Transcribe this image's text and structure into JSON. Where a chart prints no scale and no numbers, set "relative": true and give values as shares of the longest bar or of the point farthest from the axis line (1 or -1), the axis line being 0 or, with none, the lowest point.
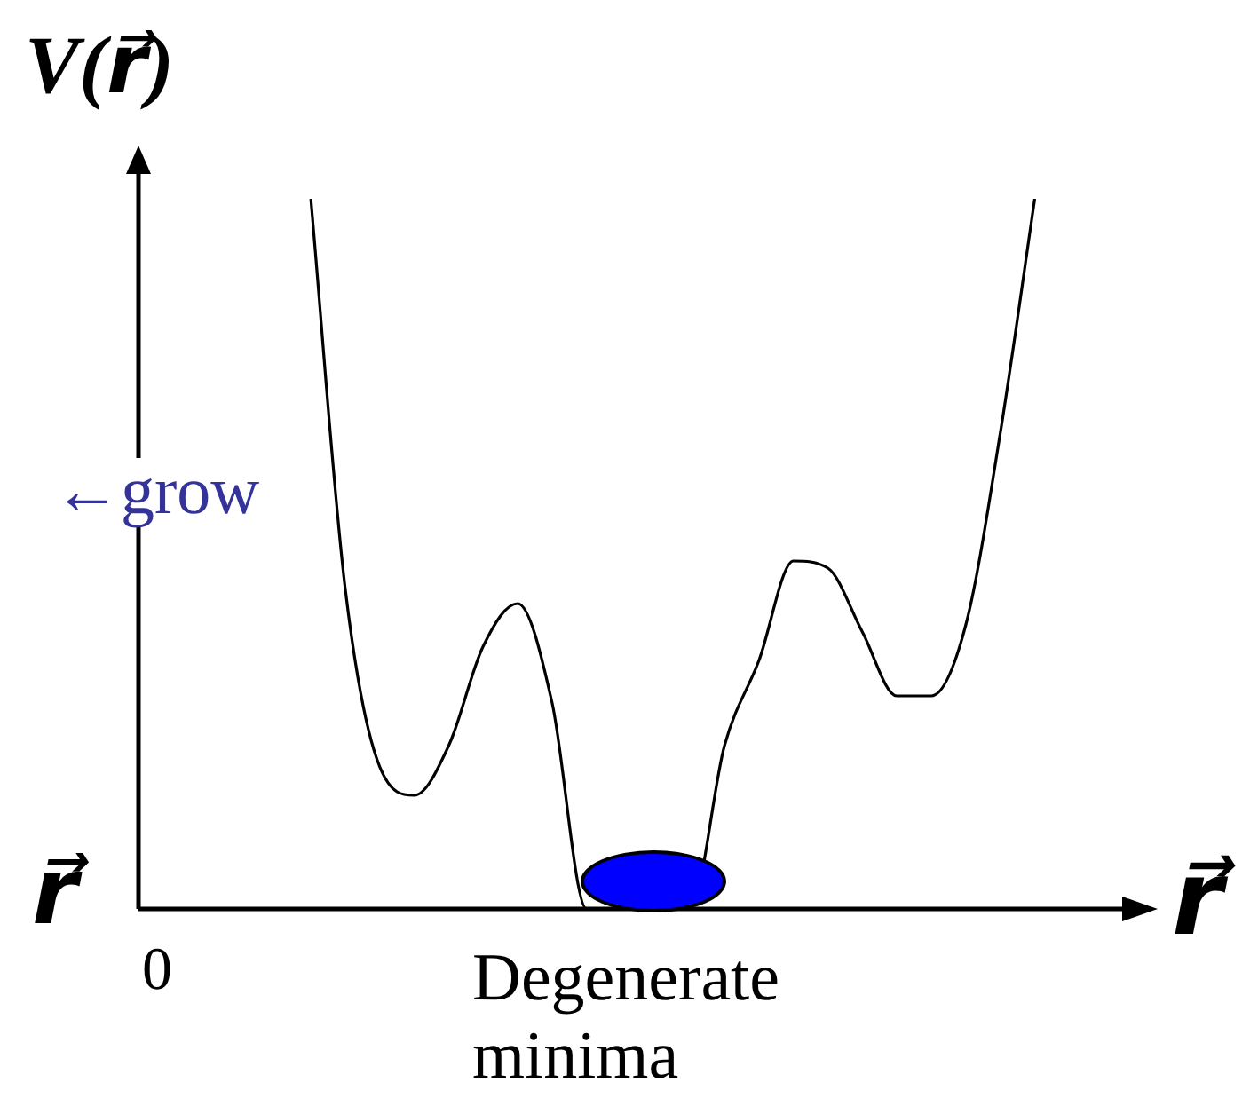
{
  "chart_data": {
    "type": "line",
    "relative": true,
    "xlabel": "r⃗",
    "ylabel": "V(r⃗)",
    "categories": [
      null,
      null,
      null,
      null,
      null,
      null,
      null,
      null,
      null,
      null,
      null,
      null,
      null,
      null,
      null,
      null,
      null,
      null,
      null,
      null,
      null,
      null,
      null,
      null,
      null,
      null,
      null,
      null,
      null,
      null
    ],
    "series": [
      {
        "color": "#000000",
        "values": [
          null,
          null,
          null,
          null,
          null,
          1,
          0.45,
          0.2,
          0.16,
          0.23,
          0.37,
          0.43,
          0.29,
          0,
          0,
          0,
          0,
          0.23,
          0.35,
          0.49,
          0.48,
          0.39,
          0.3,
          0.3,
          0.4,
          0.67,
          1,
          null,
          null,
          null
        ]
      }
    ],
    "marker": "none",
    "line_style": "solid",
    "legend": false,
    "tick_labels": false,
    "annotations": [
      "0",
      "←grow",
      "Degenerate minima",
      "r⃗"
    ]
  }
}
